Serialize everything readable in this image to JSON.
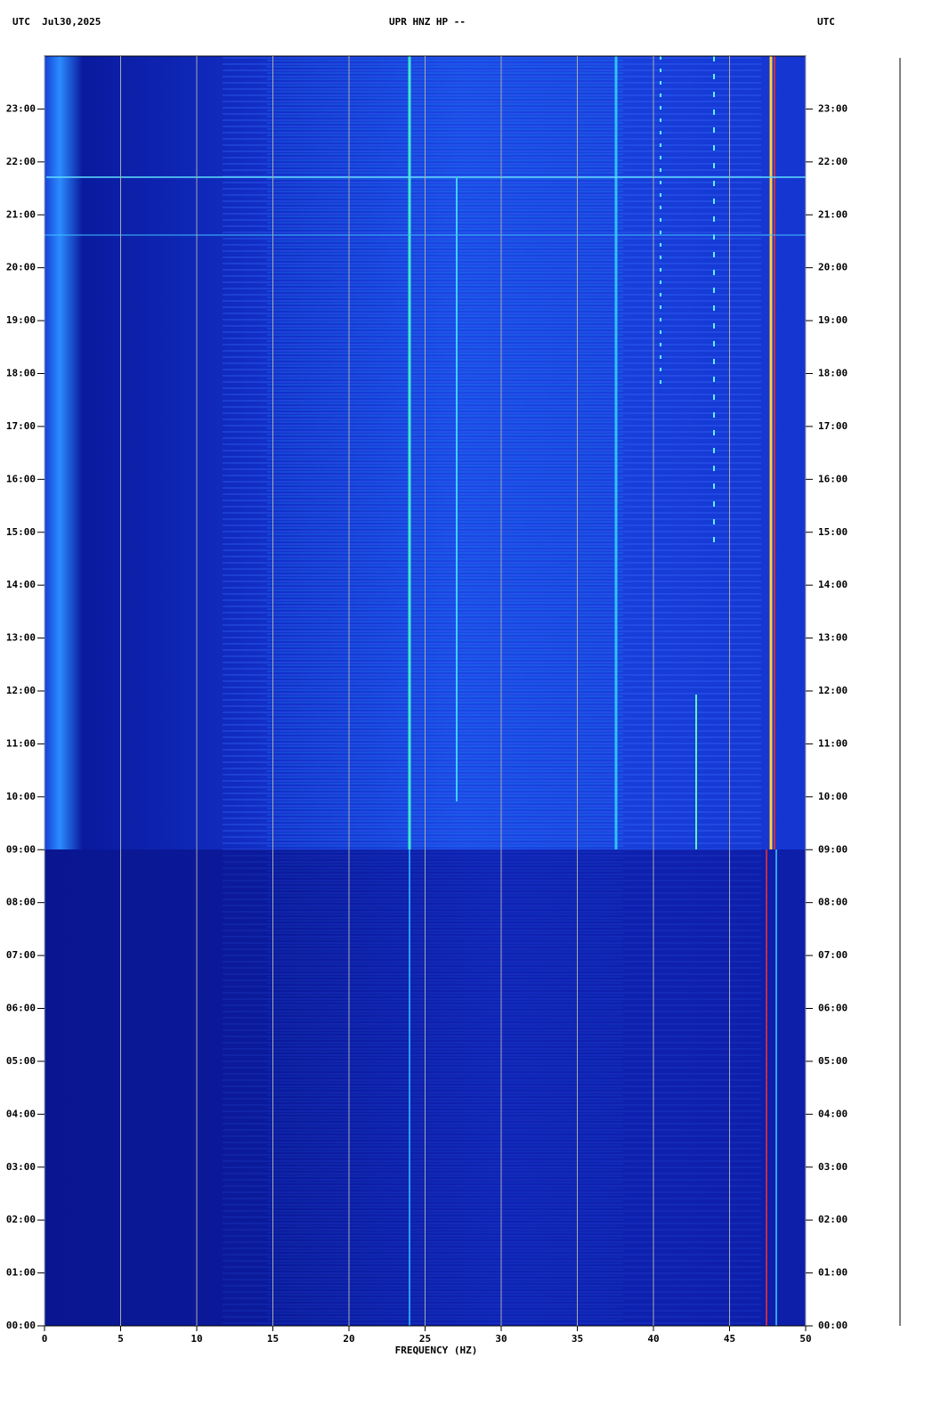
{
  "chart_data": {
    "type": "spectrogram",
    "title": "UPR HNZ HP --",
    "left_header": "UTC  Jul30,2025",
    "right_header": "UTC",
    "x_label": "FREQUENCY (HZ)",
    "xlim": [
      0,
      50
    ],
    "xticks": [
      0,
      5,
      10,
      15,
      20,
      25,
      30,
      35,
      40,
      45,
      50
    ],
    "ylim": [
      0,
      24
    ],
    "yticks": [
      {
        "value": 0,
        "label": "00:00"
      },
      {
        "value": 1,
        "label": "01:00"
      },
      {
        "value": 2,
        "label": "02:00"
      },
      {
        "value": 3,
        "label": "03:00"
      },
      {
        "value": 4,
        "label": "04:00"
      },
      {
        "value": 5,
        "label": "05:00"
      },
      {
        "value": 6,
        "label": "06:00"
      },
      {
        "value": 7,
        "label": "07:00"
      },
      {
        "value": 8,
        "label": "08:00"
      },
      {
        "value": 9,
        "label": "09:00"
      },
      {
        "value": 10,
        "label": "10:00"
      },
      {
        "value": 11,
        "label": "11:00"
      },
      {
        "value": 12,
        "label": "12:00"
      },
      {
        "value": 13,
        "label": "13:00"
      },
      {
        "value": 14,
        "label": "14:00"
      },
      {
        "value": 15,
        "label": "15:00"
      },
      {
        "value": 16,
        "label": "16:00"
      },
      {
        "value": 17,
        "label": "17:00"
      },
      {
        "value": 18,
        "label": "18:00"
      },
      {
        "value": 19,
        "label": "19:00"
      },
      {
        "value": 20,
        "label": "20:00"
      },
      {
        "value": 21,
        "label": "21:00"
      },
      {
        "value": 22,
        "label": "22:00"
      },
      {
        "value": 23,
        "label": "23:00"
      }
    ],
    "grid": true,
    "grid_color": "#aaaaaa"
  }
}
